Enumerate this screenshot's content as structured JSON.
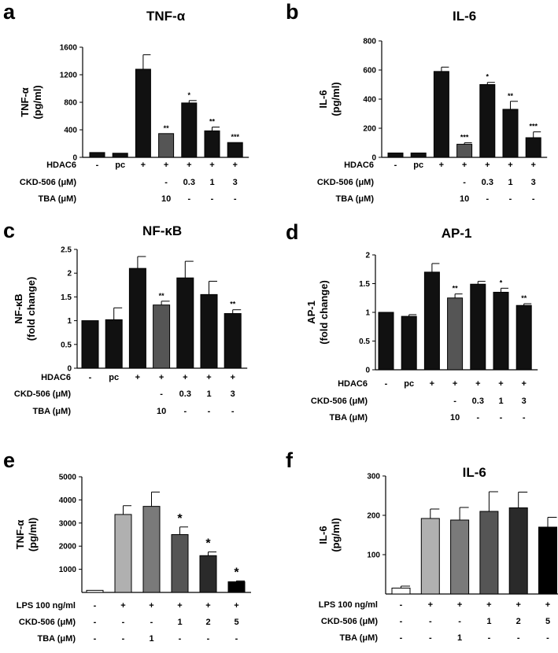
{
  "chart_data": [
    {
      "id": "a",
      "type": "bar",
      "letter": "a",
      "title": "TNF-α",
      "ylabel": [
        "TNF-α",
        "(pg/ml)"
      ],
      "ylim": [
        0,
        1600
      ],
      "yticks": [
        0,
        400,
        800,
        1200,
        1600
      ],
      "values": [
        70,
        60,
        1280,
        345,
        790,
        385,
        215
      ],
      "errors": [
        0,
        0,
        210,
        0,
        35,
        55,
        0
      ],
      "colors": [
        "#111111",
        "#111111",
        "#111111",
        "#555555",
        "#111111",
        "#111111",
        "#111111"
      ],
      "annotations": [
        "",
        "",
        "",
        "**",
        "*",
        "**",
        "***"
      ],
      "rows": [
        {
          "label": "HDAC6",
          "cells": [
            "-",
            "pc",
            "+",
            "+",
            "+",
            "+",
            "+"
          ]
        },
        {
          "label": "CKD-506 (μM)",
          "cells": [
            "",
            "",
            "",
            "-",
            "0.3",
            "1",
            "3"
          ]
        },
        {
          "label": "TBA (μM)",
          "cells": [
            "",
            "",
            "",
            "10",
            "-",
            "-",
            "-"
          ]
        }
      ]
    },
    {
      "id": "b",
      "type": "bar",
      "letter": "b",
      "title": "IL-6",
      "ylabel": [
        "IL-6",
        "(pg/ml)"
      ],
      "ylim": [
        0,
        800
      ],
      "yticks": [
        0,
        200,
        400,
        600,
        800
      ],
      "values": [
        30,
        30,
        590,
        90,
        500,
        330,
        135
      ],
      "errors": [
        0,
        0,
        30,
        10,
        15,
        55,
        40
      ],
      "colors": [
        "#111111",
        "#111111",
        "#111111",
        "#555555",
        "#111111",
        "#111111",
        "#111111"
      ],
      "annotations": [
        "",
        "",
        "",
        "***",
        "*",
        "**",
        "***"
      ],
      "rows": [
        {
          "label": "HDAC6",
          "cells": [
            "-",
            "pc",
            "+",
            "+",
            "+",
            "+",
            "+"
          ]
        },
        {
          "label": "CKD-506 (μM)",
          "cells": [
            "",
            "",
            "",
            "-",
            "0.3",
            "1",
            "3"
          ]
        },
        {
          "label": "TBA (μM)",
          "cells": [
            "",
            "",
            "",
            "10",
            "-",
            "-",
            "-"
          ]
        }
      ]
    },
    {
      "id": "c",
      "type": "bar",
      "letter": "c",
      "title": "NF-κB",
      "ylabel": [
        "NF-κB",
        "(fold change)"
      ],
      "ylim": [
        0,
        2.5
      ],
      "yticks": [
        0,
        0.5,
        1,
        1.5,
        2,
        2.5
      ],
      "ytick_labels": [
        "0",
        "0.5",
        "1",
        "1.5",
        "2",
        "2.5"
      ],
      "values": [
        1.0,
        1.02,
        2.1,
        1.33,
        1.9,
        1.55,
        1.15
      ],
      "errors": [
        0,
        0.25,
        0.25,
        0.08,
        0.35,
        0.28,
        0.08
      ],
      "colors": [
        "#111111",
        "#111111",
        "#111111",
        "#555555",
        "#111111",
        "#111111",
        "#111111"
      ],
      "annotations": [
        "",
        "",
        "",
        "**",
        "",
        "",
        "**"
      ],
      "rows": [
        {
          "label": "HDAC6",
          "cells": [
            "-",
            "pc",
            "+",
            "+",
            "+",
            "+",
            "+"
          ]
        },
        {
          "label": "CKD-506 (μM)",
          "cells": [
            "",
            "",
            "",
            "-",
            "0.3",
            "1",
            "3"
          ]
        },
        {
          "label": "TBA (μM)",
          "cells": [
            "",
            "",
            "",
            "10",
            "-",
            "-",
            "-"
          ]
        }
      ]
    },
    {
      "id": "d",
      "type": "bar",
      "letter": "d",
      "title": "AP-1",
      "ylabel": [
        "AP-1",
        "(fold change)"
      ],
      "ylim": [
        0,
        2
      ],
      "yticks": [
        0,
        0.5,
        1,
        1.5,
        2
      ],
      "ytick_labels": [
        "0",
        "0.5",
        "1",
        "1.5",
        "2"
      ],
      "values": [
        1.0,
        0.93,
        1.7,
        1.25,
        1.49,
        1.35,
        1.12
      ],
      "errors": [
        0,
        0.03,
        0.15,
        0.07,
        0.05,
        0.07,
        0.03
      ],
      "colors": [
        "#111111",
        "#111111",
        "#111111",
        "#555555",
        "#111111",
        "#111111",
        "#111111"
      ],
      "annotations": [
        "",
        "",
        "",
        "**",
        "",
        "*",
        "**"
      ],
      "rows": [
        {
          "label": "HDAC6",
          "cells": [
            "-",
            "pc",
            "+",
            "+",
            "+",
            "+",
            "+"
          ]
        },
        {
          "label": "CKD-506 (μM)",
          "cells": [
            "",
            "",
            "",
            "-",
            "0.3",
            "1",
            "3"
          ]
        },
        {
          "label": "TBA (μM)",
          "cells": [
            "",
            "",
            "",
            "10",
            "-",
            "-",
            "-"
          ]
        }
      ]
    },
    {
      "id": "e",
      "type": "bar",
      "letter": "e",
      "title": "",
      "ylabel": [
        "TNF-α",
        "(pg/ml)"
      ],
      "ylim": [
        0,
        5000
      ],
      "yticks": [
        1000,
        2000,
        3000,
        4000,
        5000
      ],
      "values": [
        90,
        3370,
        3720,
        2500,
        1590,
        460
      ],
      "errors": [
        0,
        380,
        620,
        330,
        160,
        40
      ],
      "colors": [
        "#ffffff",
        "#b0b0b0",
        "#7a7a7a",
        "#555555",
        "#2a2a2a",
        "#000000"
      ],
      "annotations": [
        "",
        "",
        "",
        "*",
        "*",
        "*"
      ],
      "rows": [
        {
          "label": "LPS 100 ng/ml",
          "cells": [
            "-",
            "+",
            "+",
            "+",
            "+",
            "+"
          ]
        },
        {
          "label": "CKD-506 (μM)",
          "cells": [
            "-",
            "-",
            "-",
            "1",
            "2",
            "5"
          ]
        },
        {
          "label": "TBA (μM)",
          "cells": [
            "-",
            "-",
            "1",
            "-",
            "-",
            "-"
          ]
        }
      ]
    },
    {
      "id": "f",
      "type": "bar",
      "letter": "f",
      "title": "IL-6",
      "ylabel": [
        "IL-6",
        "(pg/ml)"
      ],
      "ylim": [
        0,
        300
      ],
      "yticks": [
        100,
        200,
        300
      ],
      "values": [
        15,
        192,
        188,
        210,
        219,
        170
      ],
      "errors": [
        5,
        24,
        32,
        50,
        40,
        25
      ],
      "colors": [
        "#ffffff",
        "#b0b0b0",
        "#7a7a7a",
        "#555555",
        "#2a2a2a",
        "#000000"
      ],
      "annotations": [
        "",
        "",
        "",
        "",
        "",
        ""
      ],
      "rows": [
        {
          "label": "LPS 100 ng/ml",
          "cells": [
            "-",
            "+",
            "+",
            "+",
            "+",
            "+"
          ]
        },
        {
          "label": "CKD-506 (μM)",
          "cells": [
            "-",
            "-",
            "-",
            "1",
            "2",
            "5"
          ]
        },
        {
          "label": "TBA (μM)",
          "cells": [
            "-",
            "-",
            "1",
            "-",
            "-",
            "-"
          ]
        }
      ]
    }
  ]
}
